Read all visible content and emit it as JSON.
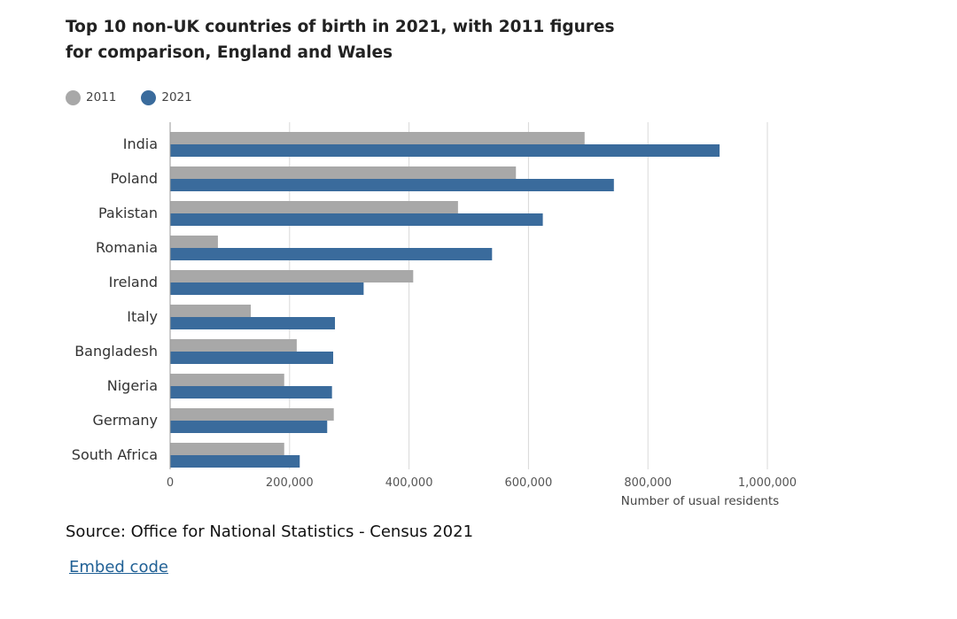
{
  "chart_data": {
    "type": "bar",
    "orientation": "horizontal",
    "title": "Top 10 non-UK countries of birth in 2021, with 2011 figures for comparison, England and Wales",
    "categories": [
      "India",
      "Poland",
      "Pakistan",
      "Romania",
      "Ireland",
      "Italy",
      "Bangladesh",
      "Nigeria",
      "Germany",
      "South Africa"
    ],
    "series": [
      {
        "name": "2011",
        "color": "#a8a8a8",
        "values": [
          694000,
          579000,
          482000,
          80000,
          407000,
          135000,
          212000,
          191000,
          274000,
          191000
        ]
      },
      {
        "name": "2021",
        "color": "#3a6b9c",
        "values": [
          920000,
          743000,
          624000,
          539000,
          324000,
          276000,
          273000,
          271000,
          263000,
          217000
        ]
      }
    ],
    "xlabel": "Number of usual residents",
    "ylabel": "",
    "xlim": [
      0,
      1000000
    ],
    "xticks": [
      0,
      200000,
      400000,
      600000,
      800000,
      1000000
    ],
    "xtick_labels": [
      "0",
      "200,000",
      "400,000",
      "600,000",
      "800,000",
      "1,000,000"
    ],
    "grid": true,
    "legend_position": "top-left"
  },
  "source": "Source: Office for National Statistics - Census 2021",
  "embed_link": "Embed code"
}
